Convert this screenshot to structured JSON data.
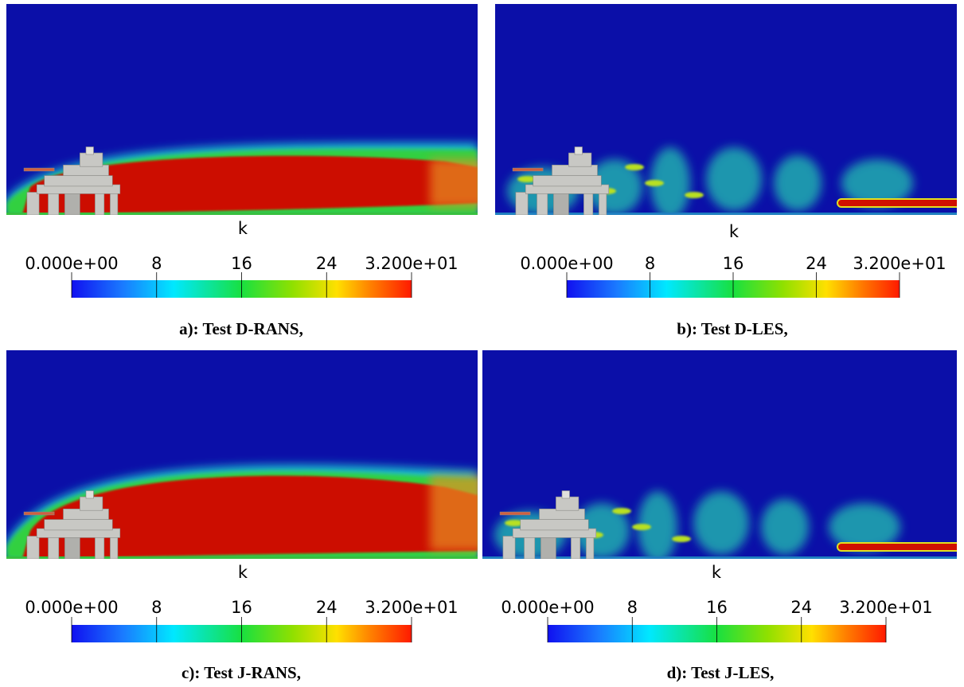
{
  "panels": [
    {
      "colorbar": {
        "title": "k",
        "range": [
          0,
          32
        ],
        "ticks": [
          {
            "value": 0,
            "label": "0.000e+00"
          },
          8,
          16,
          24,
          {
            "value": 32,
            "label": "3.200e+01"
          }
        ]
      },
      "caption": "a): Test D-RANS,"
    },
    {
      "colorbar": {
        "title": "k",
        "range": [
          0,
          32
        ],
        "ticks": [
          {
            "value": 0,
            "label": "0.000e+00"
          },
          8,
          16,
          24,
          {
            "value": 32,
            "label": "3.200e+01"
          }
        ]
      },
      "caption": "b): Test D-LES,"
    },
    {
      "colorbar": {
        "title": "k",
        "range": [
          0,
          32
        ],
        "ticks": [
          {
            "value": 0,
            "label": "0.000e+00"
          },
          8,
          16,
          24,
          {
            "value": 32,
            "label": "3.200e+01"
          }
        ]
      },
      "caption": "c): Test J-RANS,"
    },
    {
      "colorbar": {
        "title": "k",
        "range": [
          0,
          32
        ],
        "ticks": [
          {
            "value": 0,
            "label": "0.000e+00"
          },
          8,
          16,
          24,
          {
            "value": 32,
            "label": "3.200e+01"
          }
        ]
      },
      "caption": "d): Test J-LES,"
    }
  ]
}
